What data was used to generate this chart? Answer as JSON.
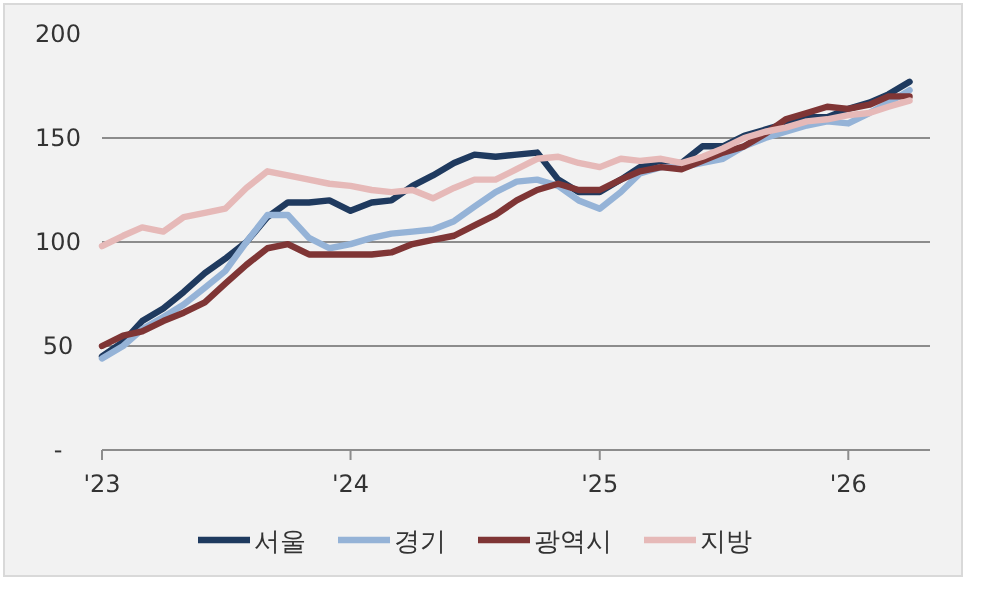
{
  "chart_data": {
    "type": "line",
    "x": [
      "2023-01",
      "2023-02",
      "2023-03",
      "2023-04",
      "2023-05",
      "2023-06",
      "2023-07",
      "2023-08",
      "2023-09",
      "2023-10",
      "2023-11",
      "2023-12",
      "2024-01",
      "2024-02",
      "2024-03",
      "2024-04",
      "2024-05",
      "2024-06",
      "2024-07",
      "2024-08",
      "2024-09",
      "2024-10",
      "2024-11",
      "2024-12",
      "2025-01",
      "2025-02",
      "2025-03",
      "2025-04",
      "2025-05",
      "2025-06",
      "2025-07",
      "2025-08",
      "2025-09",
      "2025-10",
      "2025-11",
      "2025-12",
      "2026-01",
      "2026-02",
      "2026-03",
      "2026-04"
    ],
    "series": [
      {
        "name": "서울",
        "color": "#1f3a5f",
        "values": [
          45,
          52,
          62,
          68,
          76,
          85,
          92,
          100,
          112,
          119,
          119,
          120,
          115,
          119,
          120,
          127,
          132,
          138,
          142,
          141,
          142,
          143,
          130,
          124,
          124,
          130,
          136,
          138,
          138,
          146,
          146,
          151,
          154,
          157,
          160,
          160,
          164,
          167,
          171,
          177
        ]
      },
      {
        "name": "경기",
        "color": "#95b3d7",
        "values": [
          44,
          50,
          58,
          64,
          70,
          78,
          86,
          100,
          113,
          113,
          102,
          97,
          99,
          102,
          104,
          105,
          106,
          110,
          117,
          124,
          129,
          130,
          127,
          120,
          116,
          124,
          133,
          136,
          136,
          138,
          140,
          146,
          150,
          153,
          156,
          158,
          157,
          162,
          167,
          173
        ]
      },
      {
        "name": "광역시",
        "color": "#7f3535",
        "values": [
          50,
          55,
          57,
          62,
          66,
          71,
          80,
          89,
          97,
          99,
          94,
          94,
          94,
          94,
          95,
          99,
          101,
          103,
          108,
          113,
          120,
          125,
          128,
          125,
          125,
          130,
          134,
          136,
          135,
          139,
          143,
          146,
          152,
          159,
          162,
          165,
          164,
          166,
          170,
          170
        ]
      },
      {
        "name": "지방",
        "color": "#e6b9b8",
        "values": [
          98,
          103,
          107,
          105,
          112,
          114,
          116,
          126,
          134,
          132,
          130,
          128,
          127,
          125,
          124,
          125,
          121,
          126,
          130,
          130,
          135,
          140,
          141,
          138,
          136,
          140,
          139,
          140,
          138,
          141,
          145,
          150,
          153,
          155,
          158,
          159,
          161,
          162,
          165,
          168
        ]
      }
    ],
    "xlim": [
      "2023-01",
      "2026-05"
    ],
    "xticks": [
      {
        "value": "2023-01",
        "label": "'23"
      },
      {
        "value": "2024-01",
        "label": "'24"
      },
      {
        "value": "2025-01",
        "label": "'25"
      },
      {
        "value": "2026-01",
        "label": "'26"
      }
    ],
    "ylim": [
      0,
      200
    ],
    "yticks": [
      {
        "value": 0,
        "label": "-"
      },
      50,
      100,
      150,
      200
    ],
    "grid": "y",
    "legend": "bottom",
    "marker": "none",
    "line_style": "solid"
  }
}
